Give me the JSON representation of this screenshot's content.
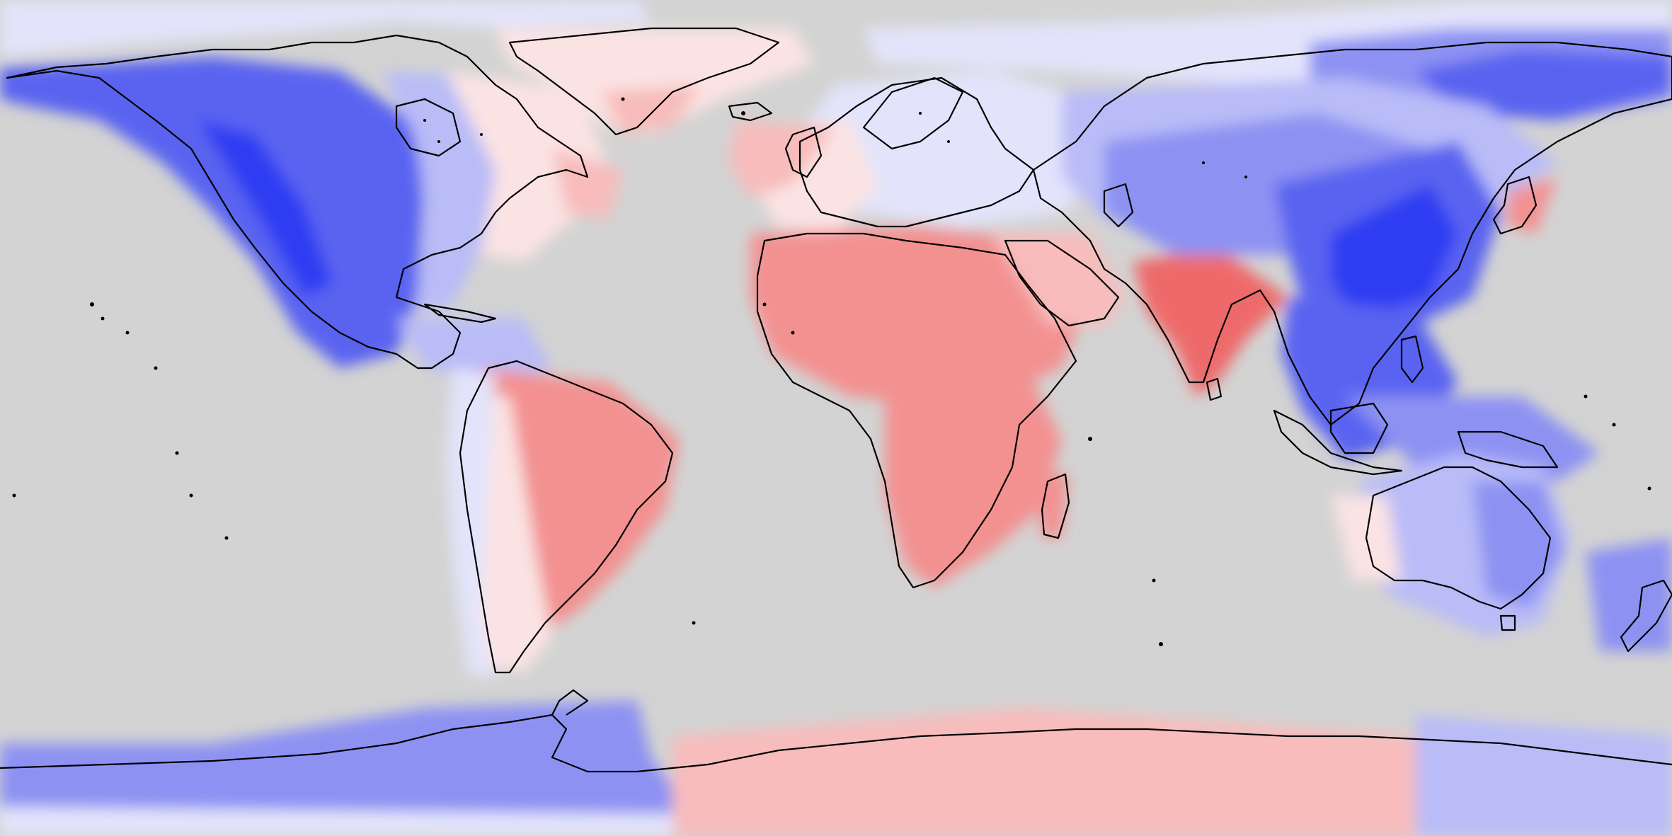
{
  "map": {
    "projection": "equirectangular",
    "extent": {
      "lon": [
        -180,
        180
      ],
      "lat": [
        -90,
        90
      ]
    },
    "ocean_color": "#d3d3d3",
    "coastline_color": "#000000",
    "legend": "none",
    "scale": {
      "type": "diverging",
      "colors": [
        "#2f3cf2",
        "#5a64f0",
        "#8d92f2",
        "#b9bcf7",
        "#e3e4fb",
        "#fbe3e3",
        "#f8bcbc",
        "#f39191",
        "#ee6a6a"
      ]
    },
    "regions": [
      {
        "name": "western-north-america",
        "level": 1
      },
      {
        "name": "central-north-america",
        "level": 3
      },
      {
        "name": "eastern-north-america",
        "level": 5
      },
      {
        "name": "greenland",
        "level": 5
      },
      {
        "name": "northern-south-america",
        "level": 7
      },
      {
        "name": "southern-south-america",
        "level": 5
      },
      {
        "name": "europe",
        "level": 4
      },
      {
        "name": "north-africa",
        "level": 7
      },
      {
        "name": "central-africa",
        "level": 8
      },
      {
        "name": "southern-africa",
        "level": 7
      },
      {
        "name": "arabia",
        "level": 6
      },
      {
        "name": "india",
        "level": 8
      },
      {
        "name": "siberia",
        "level": 3
      },
      {
        "name": "china",
        "level": 1
      },
      {
        "name": "southeast-asia",
        "level": 1
      },
      {
        "name": "australia",
        "level": 3
      },
      {
        "name": "west-antarctica",
        "level": 2
      },
      {
        "name": "east-antarctica",
        "level": 6
      }
    ]
  }
}
